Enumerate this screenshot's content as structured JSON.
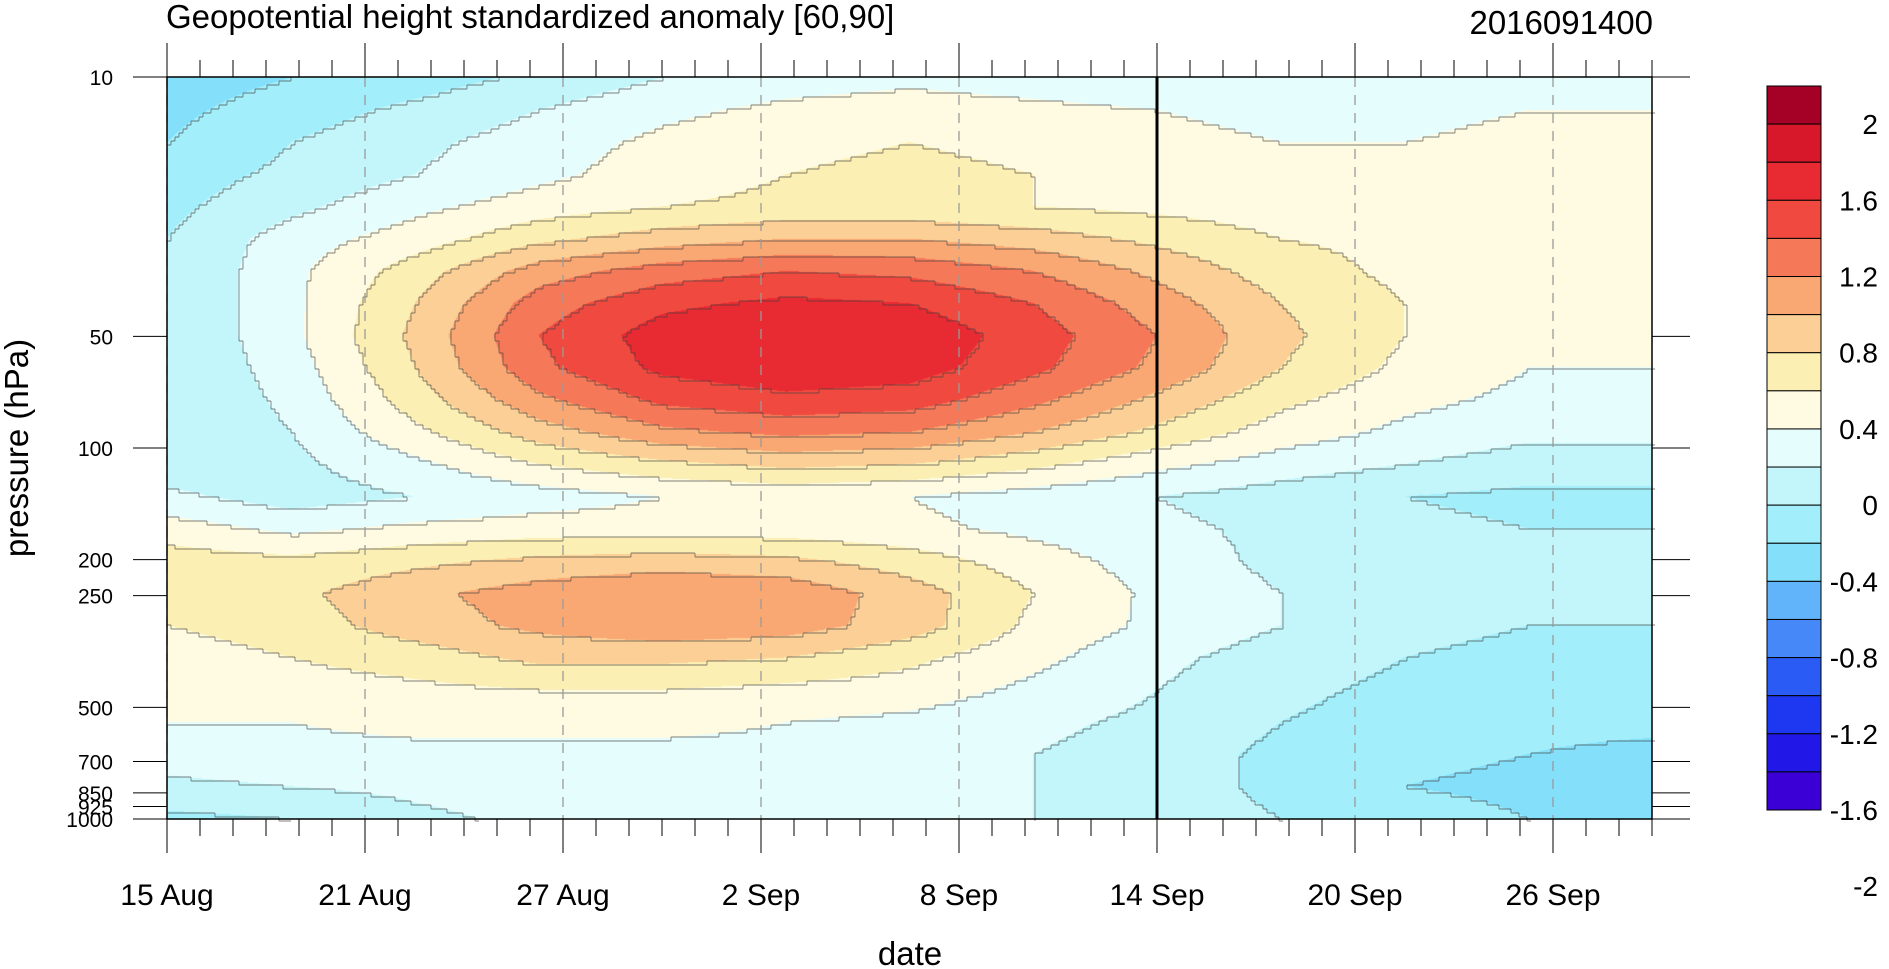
{
  "chart_data": {
    "type": "heatmap",
    "title": "Geopotential height standardized anomaly [60,90]",
    "timestamp": "2016091400",
    "xlabel": "date",
    "ylabel": "pressure (hPa)",
    "x_ticks": [
      {
        "day": 0,
        "label": "15 Aug"
      },
      {
        "day": 6,
        "label": "21 Aug"
      },
      {
        "day": 12,
        "label": "27 Aug"
      },
      {
        "day": 18,
        "label": "2 Sep"
      },
      {
        "day": 24,
        "label": "8 Sep"
      },
      {
        "day": 30,
        "label": "14 Sep"
      },
      {
        "day": 36,
        "label": "20 Sep"
      },
      {
        "day": 42,
        "label": "26 Sep"
      }
    ],
    "x_range_days": [
      0,
      45
    ],
    "y_ticks": [
      10,
      50,
      100,
      200,
      250,
      500,
      700,
      850,
      925,
      1000
    ],
    "y_tick_labels": [
      "10",
      "50",
      "100",
      "200",
      "250",
      "500",
      "700",
      "850",
      "925",
      "1000"
    ],
    "y_scale": "log",
    "y_range": [
      10,
      1000
    ],
    "y_inverted": true,
    "marked_date_day": 30,
    "colorbar": {
      "labels": [
        "2",
        "1.6",
        "1.2",
        "0.8",
        "0.4",
        "0",
        "-0.4",
        "-0.8",
        "-1.2",
        "-1.6",
        "-2"
      ],
      "levels": [
        2.2,
        2.0,
        1.8,
        1.6,
        1.4,
        1.2,
        1.0,
        0.8,
        0.6,
        0.4,
        0.2,
        0.0,
        -0.2,
        -0.4,
        -0.6,
        -0.8,
        -1.0,
        -1.2,
        -1.4,
        -1.6,
        -1.8,
        -2.0,
        -2.2
      ],
      "colors": [
        "#a50026",
        "#d7182a",
        "#e82a32",
        "#f04a40",
        "#f57858",
        "#f9a874",
        "#fbcf95",
        "#fcefb4",
        "#fefbe2",
        "#e6fdfd",
        "#c3f6fb",
        "#a2eefa",
        "#83dffa",
        "#62b4fa",
        "#4688f7",
        "#2a5cf5",
        "#1e37f0",
        "#2118e8",
        "#3a00d6"
      ]
    },
    "data_note": "standardized anomaly values estimated from contour fill colours",
    "z": [
      [
        -0.3,
        -0.2,
        -0.1,
        0.05,
        0.2,
        0.3,
        0.35,
        0.3,
        0.25,
        0.25,
        0.3,
        0.3,
        0.35
      ],
      [
        -0.25,
        -0.1,
        0.05,
        0.2,
        0.35,
        0.45,
        0.5,
        0.45,
        0.4,
        0.35,
        0.35,
        0.4,
        0.4
      ],
      [
        -0.2,
        0.0,
        0.15,
        0.3,
        0.45,
        0.55,
        0.6,
        0.55,
        0.45,
        0.4,
        0.4,
        0.45,
        0.45
      ],
      [
        -0.1,
        0.05,
        0.2,
        0.35,
        0.5,
        0.6,
        0.65,
        0.6,
        0.5,
        0.45,
        0.4,
        0.5,
        0.55
      ],
      [
        -0.05,
        0.15,
        0.35,
        0.5,
        0.6,
        0.65,
        0.65,
        0.6,
        0.55,
        0.5,
        0.5,
        0.5,
        0.55
      ],
      [
        0.0,
        0.3,
        0.5,
        0.75,
        0.9,
        1.0,
        1.0,
        0.9,
        0.75,
        0.6,
        0.55,
        0.5,
        0.5
      ],
      [
        0.0,
        0.35,
        0.7,
        1.1,
        1.3,
        1.4,
        1.35,
        1.2,
        0.95,
        0.7,
        0.55,
        0.45,
        0.45
      ],
      [
        0.0,
        0.35,
        0.8,
        1.3,
        1.55,
        1.65,
        1.6,
        1.4,
        1.1,
        0.8,
        0.6,
        0.45,
        0.45
      ],
      [
        0.0,
        0.35,
        0.85,
        1.4,
        1.7,
        1.8,
        1.75,
        1.5,
        1.2,
        0.85,
        0.6,
        0.45,
        0.45
      ],
      [
        0.0,
        0.3,
        0.8,
        1.35,
        1.65,
        1.75,
        1.7,
        1.45,
        1.15,
        0.8,
        0.55,
        0.4,
        0.4
      ],
      [
        0.0,
        0.25,
        0.7,
        1.15,
        1.45,
        1.55,
        1.5,
        1.25,
        0.95,
        0.65,
        0.45,
        0.35,
        0.35
      ],
      [
        0.0,
        0.2,
        0.55,
        0.9,
        1.15,
        1.25,
        1.2,
        1.0,
        0.75,
        0.5,
        0.35,
        0.25,
        0.25
      ],
      [
        0.05,
        0.15,
        0.35,
        0.6,
        0.75,
        0.85,
        0.8,
        0.65,
        0.45,
        0.3,
        0.2,
        0.1,
        0.1
      ],
      [
        0.25,
        0.1,
        0.2,
        0.3,
        0.4,
        0.45,
        0.4,
        0.3,
        0.2,
        0.1,
        0.0,
        -0.05,
        -0.05
      ],
      [
        0.5,
        0.35,
        0.45,
        0.5,
        0.5,
        0.5,
        0.45,
        0.35,
        0.25,
        0.15,
        0.05,
        0.0,
        0.0
      ],
      [
        0.7,
        0.65,
        0.75,
        0.85,
        0.9,
        0.85,
        0.7,
        0.5,
        0.3,
        0.15,
        0.05,
        0.0,
        0.0
      ],
      [
        0.7,
        0.75,
        0.95,
        1.1,
        1.2,
        1.15,
        0.9,
        0.6,
        0.35,
        0.2,
        0.05,
        0.0,
        0.0
      ],
      [
        0.6,
        0.7,
        0.9,
        1.05,
        1.15,
        1.1,
        0.9,
        0.55,
        0.35,
        0.2,
        0.05,
        0.0,
        0.0
      ],
      [
        0.5,
        0.6,
        0.7,
        0.85,
        0.85,
        0.8,
        0.65,
        0.45,
        0.25,
        0.1,
        0.0,
        -0.05,
        -0.05
      ],
      [
        0.45,
        0.5,
        0.55,
        0.6,
        0.6,
        0.55,
        0.5,
        0.35,
        0.2,
        0.05,
        -0.05,
        -0.1,
        -0.1
      ],
      [
        0.4,
        0.4,
        0.45,
        0.45,
        0.45,
        0.4,
        0.35,
        0.25,
        0.15,
        0.0,
        -0.1,
        -0.15,
        -0.15
      ],
      [
        0.3,
        0.35,
        0.35,
        0.35,
        0.35,
        0.35,
        0.3,
        0.2,
        0.1,
        -0.05,
        -0.15,
        -0.2,
        -0.25
      ],
      [
        0.15,
        0.2,
        0.25,
        0.3,
        0.3,
        0.3,
        0.25,
        0.2,
        0.1,
        -0.05,
        -0.2,
        -0.25,
        -0.3
      ],
      [
        -0.05,
        0.0,
        0.15,
        0.25,
        0.3,
        0.3,
        0.3,
        0.2,
        0.1,
        0.0,
        -0.1,
        -0.2,
        -0.25
      ]
    ]
  }
}
